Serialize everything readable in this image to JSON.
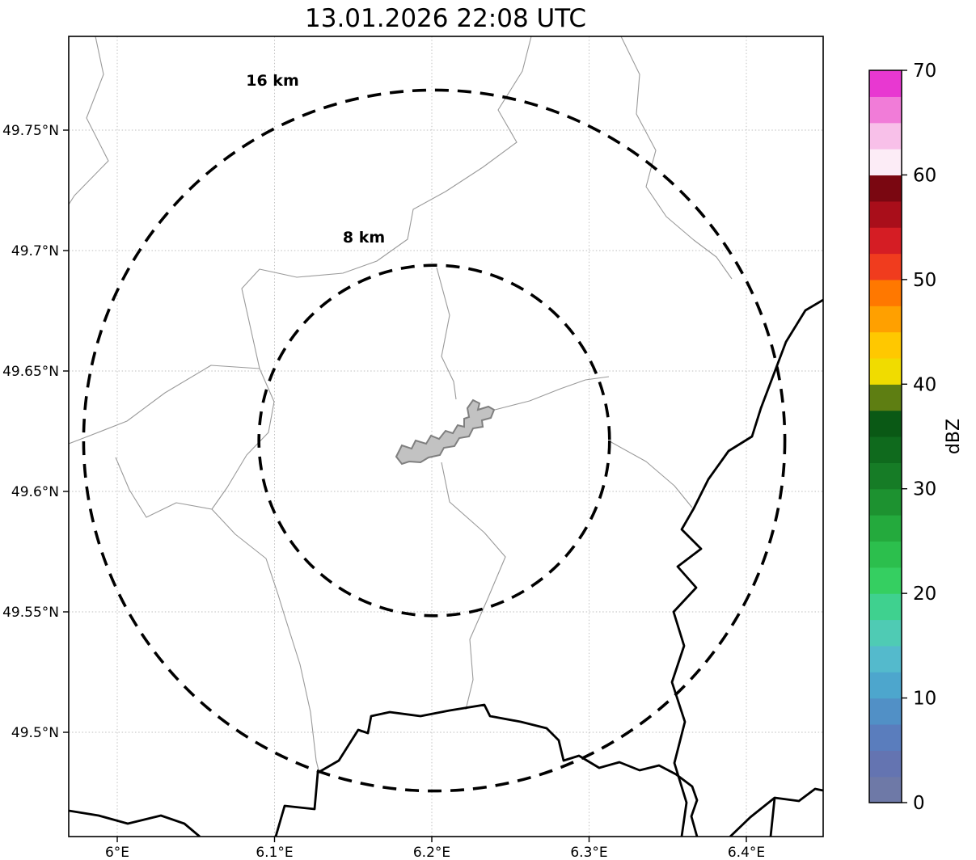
{
  "title": "13.01.2026 22:08 UTC",
  "map": {
    "x_axis_ticks": [
      {
        "label": "6°E",
        "value": 6.0
      },
      {
        "label": "6.1°E",
        "value": 6.1
      },
      {
        "label": "6.2°E",
        "value": 6.2
      },
      {
        "label": "6.3°E",
        "value": 6.3
      },
      {
        "label": "6.4°E",
        "value": 6.4
      }
    ],
    "y_axis_ticks": [
      {
        "label": "49.75°N",
        "value": 49.75
      },
      {
        "label": "49.7°N",
        "value": 49.7
      },
      {
        "label": "49.65°N",
        "value": 49.65
      },
      {
        "label": "49.6°N",
        "value": 49.6
      },
      {
        "label": "49.55°N",
        "value": 49.55
      },
      {
        "label": "49.5°N",
        "value": 49.5
      }
    ],
    "range_rings": [
      {
        "label": "16 km",
        "km": 16
      },
      {
        "label": "8 km",
        "km": 8
      }
    ]
  },
  "colorbar": {
    "label": "dBZ",
    "min": 0,
    "max": 70,
    "tick_values": [
      0,
      10,
      20,
      30,
      40,
      50,
      60,
      70
    ],
    "colors": [
      "#6e79a7",
      "#6474b1",
      "#5a7dbd",
      "#5190c6",
      "#4da6cd",
      "#54bacc",
      "#4fcbb4",
      "#3fd18f",
      "#35cf61",
      "#2cbf4d",
      "#24aa3d",
      "#1d9230",
      "#167c26",
      "#0f6a1d",
      "#0a5915",
      "#5e7e12",
      "#f0dc00",
      "#ffc800",
      "#ffa000",
      "#ff7800",
      "#f03c1e",
      "#d51d24",
      "#a90e1a",
      "#7a0711",
      "#fcecf6",
      "#f8c0e9",
      "#f17cd8",
      "#e838d1"
    ]
  }
}
